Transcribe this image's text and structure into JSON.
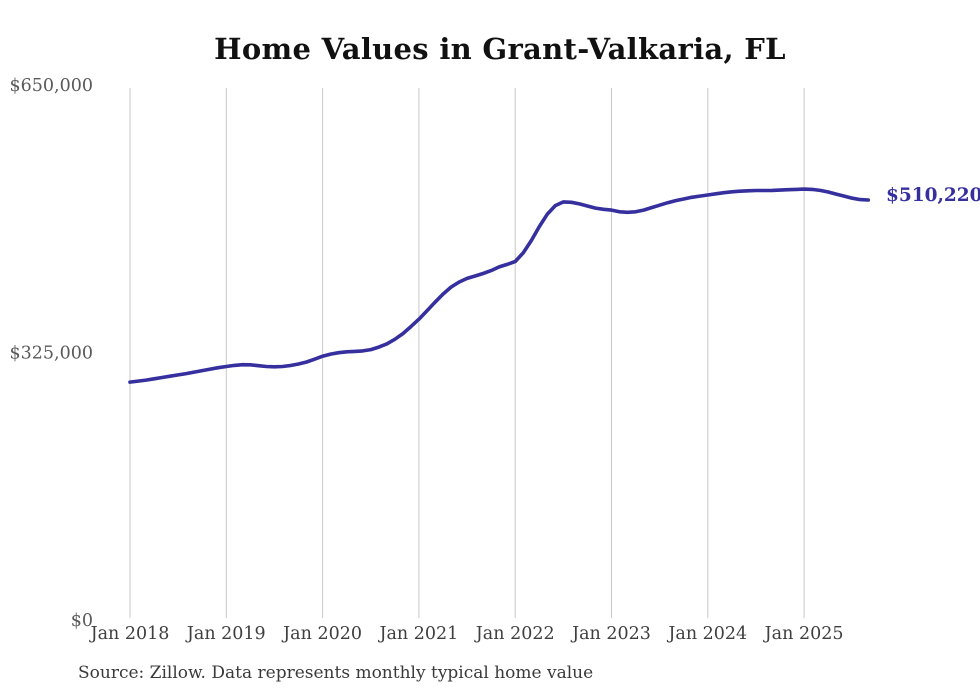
{
  "title": "Home Values in Grant-Valkaria, FL",
  "end_label": "$510,220",
  "source_note": "Source: Zillow. Data represents monthly typical home value",
  "colors": {
    "line": "#36309e",
    "end_label": "#36309e",
    "grid": "#c8c8c8",
    "x_label": "#3f3f3f",
    "y_label": "#5a5a5a",
    "title": "#111111",
    "source": "#3a3a3a"
  },
  "chart_data": {
    "type": "line",
    "title": "Home Values in Grant-Valkaria, FL",
    "xlabel": "",
    "ylabel": "",
    "ylim": [
      0,
      650000
    ],
    "y_ticks": [
      0,
      325000,
      650000
    ],
    "y_tick_labels": [
      "$0",
      "$325,000",
      "$650,000"
    ],
    "x_tick_labels": [
      "Jan 2018",
      "Jan 2019",
      "Jan 2020",
      "Jan 2021",
      "Jan 2022",
      "Jan 2023",
      "Jan 2024",
      "Jan 2025"
    ],
    "grid": "vertical-only",
    "legend_position": "none",
    "end_value": 510220,
    "series": [
      {
        "name": "Monthly typical home value (USD)",
        "start_month": "2018-01",
        "end_month": "2025-09",
        "frequency": "monthly",
        "values": [
          289000,
          290200,
          291500,
          293000,
          294600,
          296200,
          297800,
          299400,
          301200,
          303000,
          304800,
          306500,
          308000,
          309300,
          310200,
          310000,
          309000,
          308000,
          307600,
          308000,
          309200,
          311000,
          313500,
          316800,
          320500,
          323000,
          324800,
          325800,
          326300,
          327000,
          328500,
          331500,
          335500,
          341000,
          348000,
          356500,
          365500,
          375500,
          386000,
          396000,
          404500,
          410500,
          415000,
          418000,
          421000,
          424500,
          429000,
          432000,
          435500,
          446000,
          461000,
          478000,
          493000,
          503500,
          508000,
          507500,
          505500,
          503000,
          500500,
          499000,
          498000,
          496000,
          495300,
          496000,
          498000,
          501000,
          504000,
          507000,
          509500,
          511500,
          513500,
          515000,
          516300,
          517800,
          519200,
          520300,
          521000,
          521500,
          521800,
          521800,
          522000,
          522300,
          522800,
          523200,
          523500,
          523200,
          522000,
          520000,
          517500,
          515000,
          512500,
          510800,
          510220
        ]
      }
    ]
  }
}
